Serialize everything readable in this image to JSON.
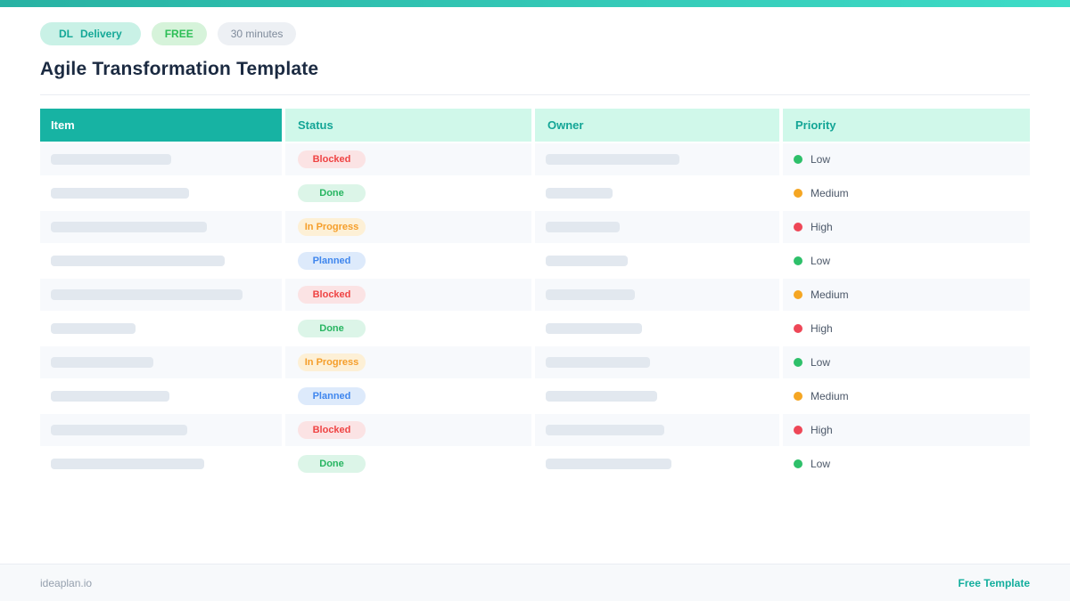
{
  "page": {
    "title": "Agile Transformation Template"
  },
  "badges": {
    "category": {
      "abbr": "DL",
      "label": "Delivery"
    },
    "free_label": "FREE",
    "duration_label": "30 minutes"
  },
  "table": {
    "columns": [
      "Item",
      "Status",
      "Owner",
      "Priority"
    ],
    "rows": [
      {
        "item_bar_width": 135,
        "status": "Blocked",
        "owner_bar_width": 150,
        "priority": "Low"
      },
      {
        "item_bar_width": 155,
        "status": "Done",
        "owner_bar_width": 75,
        "priority": "Medium"
      },
      {
        "item_bar_width": 175,
        "status": "In Progress",
        "owner_bar_width": 83,
        "priority": "High"
      },
      {
        "item_bar_width": 195,
        "status": "Planned",
        "owner_bar_width": 92,
        "priority": "Low"
      },
      {
        "item_bar_width": 215,
        "status": "Blocked",
        "owner_bar_width": 100,
        "priority": "Medium"
      },
      {
        "item_bar_width": 95,
        "status": "Done",
        "owner_bar_width": 108,
        "priority": "High"
      },
      {
        "item_bar_width": 115,
        "status": "In Progress",
        "owner_bar_width": 117,
        "priority": "Low"
      },
      {
        "item_bar_width": 133,
        "status": "Planned",
        "owner_bar_width": 125,
        "priority": "Medium"
      },
      {
        "item_bar_width": 153,
        "status": "Blocked",
        "owner_bar_width": 133,
        "priority": "High"
      },
      {
        "item_bar_width": 172,
        "status": "Done",
        "owner_bar_width": 141,
        "priority": "Low"
      }
    ]
  },
  "status_styles": {
    "Blocked": {
      "bg": "#fbe3e4",
      "fg": "#ef4444"
    },
    "Done": {
      "bg": "#dcf5e8",
      "fg": "#27b561"
    },
    "In Progress": {
      "bg": "#fdf0d6",
      "fg": "#f59e2a"
    },
    "Planned": {
      "bg": "#ddeafb",
      "fg": "#3f86ee"
    }
  },
  "priority_styles": {
    "Low": "#2ec06a",
    "Medium": "#f5a623",
    "High": "#ee4757"
  },
  "accent_colors": {
    "topbar_gradient_start": "#28b2a3",
    "topbar_gradient_end": "#3edcc7",
    "header_item_bg": "#17b3a3",
    "header_tint_bg": "#d0f8ea"
  },
  "footer": {
    "brand": "ideaplan.io",
    "link_label": "Free Template"
  }
}
